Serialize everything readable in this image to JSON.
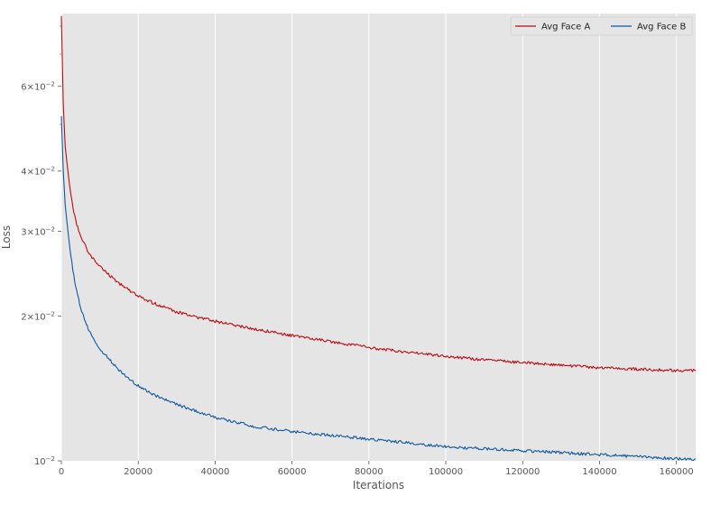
{
  "chart_data": {
    "type": "line",
    "title": "",
    "xlabel": "Iterations",
    "ylabel": "Loss",
    "xlim": [
      0,
      165000
    ],
    "ylim": [
      0.01,
      0.085
    ],
    "yscale": "log",
    "grid": true,
    "legend_position": "top-right",
    "x_ticks": [
      {
        "value": 0,
        "label": "0"
      },
      {
        "value": 20000,
        "label": "20000"
      },
      {
        "value": 40000,
        "label": "40000"
      },
      {
        "value": 60000,
        "label": "60000"
      },
      {
        "value": 80000,
        "label": "80000"
      },
      {
        "value": 100000,
        "label": "100000"
      },
      {
        "value": 120000,
        "label": "120000"
      },
      {
        "value": 140000,
        "label": "140000"
      },
      {
        "value": 160000,
        "label": "160000"
      }
    ],
    "y_ticks": [
      {
        "value": 0.01,
        "coef": "",
        "exp": "−2"
      },
      {
        "value": 0.02,
        "coef": "2",
        "exp": "−2"
      },
      {
        "value": 0.03,
        "coef": "3",
        "exp": "−2"
      },
      {
        "value": 0.04,
        "coef": "4",
        "exp": "−2"
      },
      {
        "value": 0.06,
        "coef": "6",
        "exp": "−2"
      }
    ],
    "x": [
      0,
      500,
      1000,
      2000,
      3000,
      4000,
      5000,
      6000,
      7000,
      8000,
      10000,
      12000,
      15000,
      18000,
      20000,
      25000,
      30000,
      35000,
      40000,
      50000,
      60000,
      70000,
      80000,
      90000,
      100000,
      110000,
      120000,
      130000,
      140000,
      150000,
      160000,
      165000
    ],
    "series": [
      {
        "name": "Avg Face A",
        "color": "#bb0a14",
        "values": [
          0.084,
          0.055,
          0.045,
          0.038,
          0.0335,
          0.031,
          0.0292,
          0.0282,
          0.0272,
          0.0265,
          0.0254,
          0.0245,
          0.0234,
          0.0225,
          0.022,
          0.0211,
          0.0204,
          0.0199,
          0.0195,
          0.0188,
          0.0182,
          0.0177,
          0.0172,
          0.0168,
          0.0165,
          0.0162,
          0.016,
          0.0158,
          0.0156,
          0.0155,
          0.0154,
          0.0154
        ]
      },
      {
        "name": "Avg Face B",
        "color": "#11589f",
        "values": [
          0.052,
          0.04,
          0.034,
          0.0285,
          0.0248,
          0.0225,
          0.0208,
          0.0197,
          0.0188,
          0.0181,
          0.0171,
          0.0164,
          0.0154,
          0.0147,
          0.0143,
          0.0136,
          0.0131,
          0.0127,
          0.0123,
          0.0118,
          0.0115,
          0.0113,
          0.0111,
          0.0109,
          0.0107,
          0.0106,
          0.0105,
          0.0104,
          0.0103,
          0.0102,
          0.0101,
          0.0101
        ]
      }
    ]
  }
}
